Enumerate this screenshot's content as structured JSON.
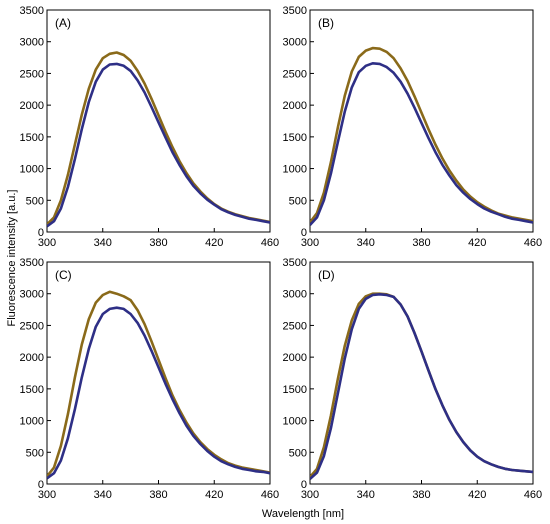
{
  "figure": {
    "ylabel": "Fluorescence intensity [a.u.]",
    "xlabel": "Wavelength [nm]",
    "colors": {
      "series_a": "#8a6a1a",
      "series_b": "#2e2f86"
    }
  },
  "chart_data": [
    {
      "type": "line",
      "panel_label": "(A)",
      "xlim": [
        300,
        460
      ],
      "ylim": [
        0,
        3500
      ],
      "xticks": [
        "300",
        "340",
        "380",
        "420",
        "460"
      ],
      "yticks": [
        "0",
        "500",
        "1000",
        "1500",
        "2000",
        "2500",
        "3000",
        "3500"
      ],
      "grid": false,
      "series": [
        {
          "color": "#8a6a1a",
          "x": [
            300,
            305,
            310,
            315,
            320,
            325,
            330,
            335,
            340,
            345,
            350,
            355,
            360,
            365,
            370,
            375,
            380,
            385,
            390,
            395,
            400,
            405,
            410,
            415,
            420,
            425,
            430,
            435,
            440,
            445,
            450,
            455,
            460
          ],
          "y": [
            120,
            230,
            500,
            900,
            1380,
            1850,
            2260,
            2560,
            2740,
            2810,
            2830,
            2790,
            2700,
            2540,
            2340,
            2100,
            1840,
            1580,
            1340,
            1120,
            930,
            770,
            640,
            530,
            440,
            370,
            320,
            280,
            250,
            220,
            200,
            180,
            160
          ]
        },
        {
          "color": "#2e2f86",
          "x": [
            300,
            305,
            310,
            315,
            320,
            325,
            330,
            335,
            340,
            345,
            350,
            355,
            360,
            365,
            370,
            375,
            380,
            385,
            390,
            395,
            400,
            405,
            410,
            415,
            420,
            425,
            430,
            435,
            440,
            445,
            450,
            455,
            460
          ],
          "y": [
            90,
            170,
            370,
            710,
            1150,
            1620,
            2050,
            2370,
            2560,
            2640,
            2650,
            2620,
            2540,
            2390,
            2200,
            1970,
            1730,
            1490,
            1260,
            1060,
            880,
            730,
            610,
            510,
            430,
            360,
            310,
            270,
            240,
            210,
            190,
            170,
            150
          ]
        }
      ]
    },
    {
      "type": "line",
      "panel_label": "(B)",
      "xlim": [
        300,
        460
      ],
      "ylim": [
        0,
        3500
      ],
      "xticks": [
        "300",
        "340",
        "380",
        "420",
        "460"
      ],
      "yticks": [
        "0",
        "500",
        "1000",
        "1500",
        "2000",
        "2500",
        "3000",
        "3500"
      ],
      "grid": false,
      "series": [
        {
          "color": "#8a6a1a",
          "x": [
            300,
            305,
            310,
            315,
            320,
            325,
            330,
            335,
            340,
            345,
            350,
            355,
            360,
            365,
            370,
            375,
            380,
            385,
            390,
            395,
            400,
            405,
            410,
            415,
            420,
            425,
            430,
            435,
            440,
            445,
            450,
            455,
            460
          ],
          "y": [
            150,
            300,
            620,
            1100,
            1650,
            2150,
            2530,
            2760,
            2860,
            2900,
            2890,
            2840,
            2740,
            2580,
            2380,
            2140,
            1880,
            1620,
            1380,
            1160,
            970,
            810,
            670,
            560,
            470,
            400,
            340,
            290,
            260,
            230,
            210,
            190,
            170
          ]
        },
        {
          "color": "#2e2f86",
          "x": [
            300,
            305,
            310,
            315,
            320,
            325,
            330,
            335,
            340,
            345,
            350,
            355,
            360,
            365,
            370,
            375,
            380,
            385,
            390,
            395,
            400,
            405,
            410,
            415,
            420,
            425,
            430,
            435,
            440,
            445,
            450,
            455,
            460
          ],
          "y": [
            110,
            230,
            500,
            920,
            1420,
            1900,
            2280,
            2520,
            2620,
            2660,
            2650,
            2600,
            2510,
            2370,
            2180,
            1960,
            1720,
            1480,
            1260,
            1060,
            890,
            740,
            620,
            520,
            440,
            370,
            320,
            280,
            240,
            210,
            190,
            170,
            150
          ]
        }
      ]
    },
    {
      "type": "line",
      "panel_label": "(C)",
      "xlim": [
        300,
        460
      ],
      "ylim": [
        0,
        3500
      ],
      "xticks": [
        "300",
        "340",
        "380",
        "420",
        "460"
      ],
      "yticks": [
        "0",
        "500",
        "1000",
        "1500",
        "2000",
        "2500",
        "3000",
        "3500"
      ],
      "grid": false,
      "series": [
        {
          "color": "#8a6a1a",
          "x": [
            300,
            305,
            310,
            315,
            320,
            325,
            330,
            335,
            340,
            345,
            350,
            355,
            360,
            365,
            370,
            375,
            380,
            385,
            390,
            395,
            400,
            405,
            410,
            415,
            420,
            425,
            430,
            435,
            440,
            445,
            450,
            455,
            460
          ],
          "y": [
            120,
            260,
            600,
            1100,
            1680,
            2200,
            2600,
            2860,
            2980,
            3030,
            3000,
            2960,
            2900,
            2740,
            2520,
            2250,
            1960,
            1670,
            1400,
            1170,
            970,
            800,
            660,
            550,
            460,
            390,
            330,
            290,
            260,
            240,
            220,
            200,
            180
          ]
        },
        {
          "color": "#2e2f86",
          "x": [
            300,
            305,
            310,
            315,
            320,
            325,
            330,
            335,
            340,
            345,
            350,
            355,
            360,
            365,
            370,
            375,
            380,
            385,
            390,
            395,
            400,
            405,
            410,
            415,
            420,
            425,
            430,
            435,
            440,
            445,
            450,
            455,
            460
          ],
          "y": [
            90,
            170,
            370,
            720,
            1180,
            1680,
            2130,
            2480,
            2680,
            2760,
            2780,
            2760,
            2680,
            2540,
            2340,
            2100,
            1840,
            1580,
            1340,
            1120,
            920,
            760,
            630,
            520,
            430,
            360,
            310,
            270,
            240,
            220,
            200,
            190,
            170
          ]
        }
      ]
    },
    {
      "type": "line",
      "panel_label": "(D)",
      "xlim": [
        300,
        460
      ],
      "ylim": [
        0,
        3500
      ],
      "xticks": [
        "300",
        "340",
        "380",
        "420",
        "460"
      ],
      "yticks": [
        "0",
        "500",
        "1000",
        "1500",
        "2000",
        "2500",
        "3000",
        "3500"
      ],
      "grid": false,
      "series": [
        {
          "color": "#8a6a1a",
          "x": [
            300,
            305,
            310,
            315,
            320,
            325,
            330,
            335,
            340,
            345,
            350,
            355,
            360,
            365,
            370,
            375,
            380,
            385,
            390,
            395,
            400,
            405,
            410,
            415,
            420,
            425,
            430,
            435,
            440,
            445,
            450,
            455,
            460
          ],
          "y": [
            110,
            240,
            580,
            1080,
            1660,
            2180,
            2580,
            2840,
            2960,
            3000,
            3000,
            2990,
            2950,
            2830,
            2640,
            2380,
            2090,
            1790,
            1500,
            1240,
            1010,
            820,
            660,
            530,
            430,
            360,
            310,
            270,
            240,
            220,
            210,
            200,
            190
          ]
        },
        {
          "color": "#2e2f86",
          "x": [
            300,
            305,
            310,
            315,
            320,
            325,
            330,
            335,
            340,
            345,
            350,
            355,
            360,
            365,
            370,
            375,
            380,
            385,
            390,
            395,
            400,
            405,
            410,
            415,
            420,
            425,
            430,
            435,
            440,
            445,
            450,
            455,
            460
          ],
          "y": [
            80,
            180,
            440,
            880,
            1430,
            1980,
            2440,
            2760,
            2920,
            2980,
            2990,
            2980,
            2950,
            2830,
            2640,
            2380,
            2090,
            1790,
            1500,
            1240,
            1010,
            820,
            660,
            530,
            430,
            360,
            310,
            270,
            240,
            220,
            210,
            200,
            190
          ]
        }
      ]
    }
  ]
}
